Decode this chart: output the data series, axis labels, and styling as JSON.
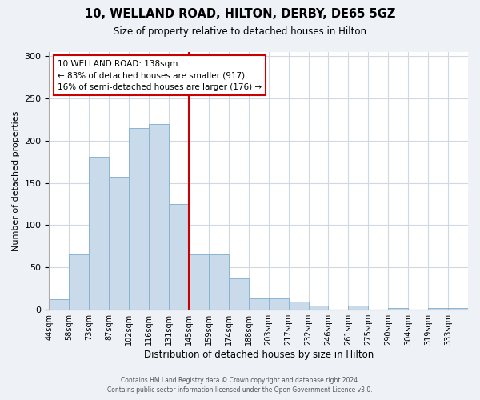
{
  "title": "10, WELLAND ROAD, HILTON, DERBY, DE65 5GZ",
  "subtitle": "Size of property relative to detached houses in Hilton",
  "xlabel": "Distribution of detached houses by size in Hilton",
  "ylabel": "Number of detached properties",
  "bin_labels": [
    "44sqm",
    "58sqm",
    "73sqm",
    "87sqm",
    "102sqm",
    "116sqm",
    "131sqm",
    "145sqm",
    "159sqm",
    "174sqm",
    "188sqm",
    "203sqm",
    "217sqm",
    "232sqm",
    "246sqm",
    "261sqm",
    "275sqm",
    "290sqm",
    "304sqm",
    "319sqm",
    "333sqm"
  ],
  "bar_values": [
    12,
    65,
    181,
    157,
    215,
    220,
    125,
    65,
    65,
    37,
    13,
    13,
    10,
    5,
    0,
    5,
    0,
    2,
    0,
    2,
    2
  ],
  "bar_color": "#c9daea",
  "bar_edgecolor": "#89b4d0",
  "vline_x_bin": 6,
  "annotation_title": "10 WELLAND ROAD: 138sqm",
  "annotation_line1": "← 83% of detached houses are smaller (917)",
  "annotation_line2": "16% of semi-detached houses are larger (176) →",
  "annotation_box_color": "#ffffff",
  "annotation_box_edgecolor": "#cc0000",
  "vline_color": "#cc0000",
  "ylim": [
    0,
    305
  ],
  "yticks": [
    0,
    50,
    100,
    150,
    200,
    250,
    300
  ],
  "footer1": "Contains HM Land Registry data © Crown copyright and database right 2024.",
  "footer2": "Contains public sector information licensed under the Open Government Licence v3.0.",
  "bg_color": "#eef2f7",
  "plot_bg_color": "#ffffff",
  "grid_color": "#d0d8e4"
}
